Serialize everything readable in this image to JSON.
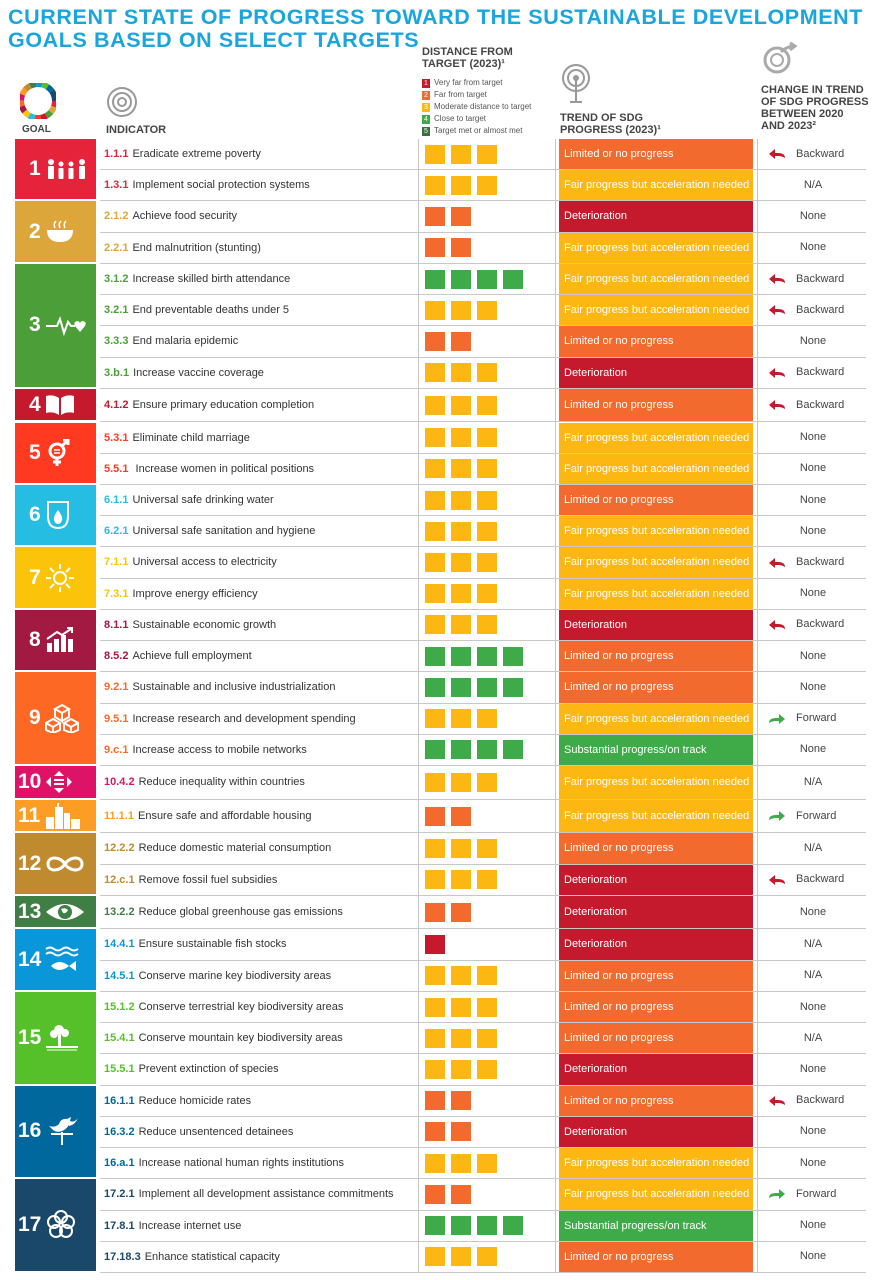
{
  "title": [
    "CURRENT STATE OF PROGRESS TOWARD THE SUSTAINABLE DEVELOPMENT",
    "GOALS BASED ON SELECT TARGETS"
  ],
  "headers": {
    "goal": "GOAL",
    "indicator": "INDICATOR",
    "distance": [
      "DISTANCE FROM",
      "TARGET (2023)¹"
    ],
    "trend": [
      "TREND OF SDG",
      "PROGRESS (2023)¹"
    ],
    "change": [
      "CHANGE IN TREND",
      "OF SDG PROGRESS",
      "BETWEEN 2020",
      "AND 2023²"
    ]
  },
  "colors": {
    "dist_1": "#c5192d",
    "dist_2": "#f26a2d",
    "dist_3": "#fdb713",
    "dist_4": "#3faa48",
    "dist_5": "#3d6f3e",
    "trend_deterioration": "#c5192d",
    "trend_limited": "#f26a2d",
    "trend_fair": "#fdb713",
    "trend_substantial": "#3faa48",
    "arrow_backward": "#c5192d",
    "arrow_forward": "#3faa48"
  },
  "legend": [
    {
      "n": "1",
      "label": "Very far from target",
      "color": "#c5192d"
    },
    {
      "n": "2",
      "label": "Far from target",
      "color": "#f26a2d"
    },
    {
      "n": "3",
      "label": "Moderate distance to target",
      "color": "#fdb713"
    },
    {
      "n": "4",
      "label": "Close to target",
      "color": "#3faa48"
    },
    {
      "n": "5",
      "label": "Target met or almost met",
      "color": "#3d6f3e"
    }
  ],
  "goals": [
    {
      "n": "1",
      "color": "#e5243b",
      "icon": "family-icon"
    },
    {
      "n": "2",
      "color": "#dda63a",
      "icon": "bowl-icon"
    },
    {
      "n": "3",
      "color": "#4c9f38",
      "icon": "heartbeat-icon"
    },
    {
      "n": "4",
      "color": "#c5192d",
      "icon": "book-icon"
    },
    {
      "n": "5",
      "color": "#ff3a21",
      "icon": "gender-icon"
    },
    {
      "n": "6",
      "color": "#26bde2",
      "icon": "water-drop-icon"
    },
    {
      "n": "7",
      "color": "#fcc30b",
      "icon": "sun-icon"
    },
    {
      "n": "8",
      "color": "#a21942",
      "icon": "growth-chart-icon"
    },
    {
      "n": "9",
      "color": "#fd6925",
      "icon": "cubes-icon"
    },
    {
      "n": "10",
      "color": "#dd1367",
      "icon": "equality-icon"
    },
    {
      "n": "11",
      "color": "#fd9d24",
      "icon": "city-icon"
    },
    {
      "n": "12",
      "color": "#bf8b2e",
      "icon": "infinity-icon"
    },
    {
      "n": "13",
      "color": "#3f7e44",
      "icon": "eye-globe-icon"
    },
    {
      "n": "14",
      "color": "#0a97d9",
      "icon": "fish-icon"
    },
    {
      "n": "15",
      "color": "#56c02b",
      "icon": "tree-icon"
    },
    {
      "n": "16",
      "color": "#00689d",
      "icon": "dove-icon"
    },
    {
      "n": "17",
      "color": "#19486a",
      "icon": "flower-icon"
    }
  ],
  "chart_data": {
    "type": "table",
    "columns": [
      "GOAL",
      "INDICATOR",
      "DISTANCE FROM TARGET (2023)¹",
      "TREND OF SDG PROGRESS (2023)¹",
      "CHANGE IN TREND OF SDG PROGRESS BETWEEN 2020 AND 2023²"
    ],
    "rows": [
      {
        "goal": "1",
        "code": "1.1.1",
        "text": "Eradicate extreme poverty",
        "distance": 3,
        "trend": "Limited or no progress",
        "change": "Backward"
      },
      {
        "goal": "1",
        "code": "1.3.1",
        "text": "Implement social protection systems",
        "distance": 3,
        "trend": "Fair progress but acceleration needed",
        "change": "N/A"
      },
      {
        "goal": "2",
        "code": "2.1.2",
        "text": "Achieve food security",
        "distance": 2,
        "trend": "Deterioration",
        "change": "None"
      },
      {
        "goal": "2",
        "code": "2.2.1",
        "text": "End malnutrition (stunting)",
        "distance": 2,
        "trend": "Fair progress but acceleration needed",
        "change": "None"
      },
      {
        "goal": "3",
        "code": "3.1.2",
        "text": "Increase skilled birth attendance",
        "distance": 4,
        "trend": "Fair progress but acceleration needed",
        "change": "Backward"
      },
      {
        "goal": "3",
        "code": "3.2.1",
        "text": "End preventable deaths under 5",
        "distance": 3,
        "trend": "Fair progress but acceleration needed",
        "change": "Backward"
      },
      {
        "goal": "3",
        "code": "3.3.3",
        "text": "End malaria epidemic",
        "distance": 2,
        "trend": "Limited or no progress",
        "change": "None"
      },
      {
        "goal": "3",
        "code": "3.b.1",
        "text": "Increase vaccine coverage",
        "distance": 3,
        "trend": "Deterioration",
        "change": "Backward"
      },
      {
        "goal": "4",
        "code": "4.1.2",
        "text": "Ensure primary education completion",
        "distance": 3,
        "trend": "Limited or no progress",
        "change": "Backward"
      },
      {
        "goal": "5",
        "code": "5.3.1",
        "text": "Eliminate child marriage",
        "distance": 3,
        "trend": "Fair progress but acceleration needed",
        "change": "None"
      },
      {
        "goal": "5",
        "code": "5.5.1",
        "text": " Increase women in political positions",
        "distance": 3,
        "trend": "Fair progress but acceleration needed",
        "change": "None"
      },
      {
        "goal": "6",
        "code": "6.1.1",
        "text": "Universal safe drinking water",
        "distance": 3,
        "trend": "Limited or no progress",
        "change": "None"
      },
      {
        "goal": "6",
        "code": "6.2.1",
        "text": "Universal safe sanitation and hygiene",
        "distance": 3,
        "trend": "Fair progress but acceleration needed",
        "change": "None"
      },
      {
        "goal": "7",
        "code": "7.1.1",
        "text": "Universal access to electricity",
        "distance": 3,
        "trend": "Fair progress but acceleration needed",
        "change": "Backward"
      },
      {
        "goal": "7",
        "code": "7.3.1",
        "text": "Improve energy efficiency",
        "distance": 3,
        "trend": "Fair progress but acceleration needed",
        "change": "None"
      },
      {
        "goal": "8",
        "code": "8.1.1",
        "text": "Sustainable economic growth",
        "distance": 3,
        "trend": "Deterioration",
        "change": "Backward"
      },
      {
        "goal": "8",
        "code": "8.5.2",
        "text": "Achieve full employment",
        "distance": 4,
        "trend": "Limited or no progress",
        "change": "None"
      },
      {
        "goal": "9",
        "code": "9.2.1",
        "text": "Sustainable and inclusive industrialization",
        "distance": 4,
        "trend": "Limited or no progress",
        "change": "None"
      },
      {
        "goal": "9",
        "code": "9.5.1",
        "text": "Increase research and development spending",
        "distance": 3,
        "trend": "Fair progress but acceleration needed",
        "change": "Forward"
      },
      {
        "goal": "9",
        "code": "9.c.1",
        "text": "Increase access to mobile networks",
        "distance": 4,
        "trend": "Substantial progress/on track",
        "change": "None"
      },
      {
        "goal": "10",
        "code": "10.4.2",
        "text": "Reduce inequality within countries",
        "distance": 3,
        "trend": "Fair progress but acceleration needed",
        "change": "N/A"
      },
      {
        "goal": "11",
        "code": "11.1.1",
        "text": "Ensure safe and affordable housing",
        "distance": 2,
        "trend": "Fair progress but acceleration needed",
        "change": "Forward"
      },
      {
        "goal": "12",
        "code": "12.2.2",
        "text": "Reduce domestic material consumption",
        "distance": 3,
        "trend": "Limited or no progress",
        "change": "N/A"
      },
      {
        "goal": "12",
        "code": "12.c.1",
        "text": "Remove fossil fuel subsidies",
        "distance": 3,
        "trend": "Deterioration",
        "change": "Backward"
      },
      {
        "goal": "13",
        "code": "13.2.2",
        "text": "Reduce global greenhouse gas emissions",
        "distance": 2,
        "trend": "Deterioration",
        "change": "None"
      },
      {
        "goal": "14",
        "code": "14.4.1",
        "text": "Ensure sustainable fish stocks",
        "distance": 1,
        "trend": "Deterioration",
        "change": "N/A"
      },
      {
        "goal": "14",
        "code": "14.5.1",
        "text": "Conserve marine key biodiversity areas",
        "distance": 3,
        "trend": "Limited or no progress",
        "change": "N/A"
      },
      {
        "goal": "15",
        "code": "15.1.2",
        "text": "Conserve terrestrial key biodiversity areas",
        "distance": 3,
        "trend": "Limited or no progress",
        "change": "None"
      },
      {
        "goal": "15",
        "code": "15.4.1",
        "text": "Conserve mountain key biodiversity areas",
        "distance": 3,
        "trend": "Limited or no progress",
        "change": "N/A"
      },
      {
        "goal": "15",
        "code": "15.5.1",
        "text": "Prevent extinction of species",
        "distance": 3,
        "trend": "Deterioration",
        "change": "None"
      },
      {
        "goal": "16",
        "code": "16.1.1",
        "text": "Reduce homicide rates",
        "distance": 2,
        "trend": "Limited or no progress",
        "change": "Backward"
      },
      {
        "goal": "16",
        "code": "16.3.2",
        "text": "Reduce unsentenced detainees",
        "distance": 2,
        "trend": "Deterioration",
        "change": "None"
      },
      {
        "goal": "16",
        "code": "16.a.1",
        "text": "Increase national human rights institutions",
        "distance": 3,
        "trend": "Fair progress but acceleration needed",
        "change": "None"
      },
      {
        "goal": "17",
        "code": "17.2.1",
        "text": "Implement all development assistance commitments",
        "distance": 2,
        "trend": "Fair progress but acceleration needed",
        "change": "Forward"
      },
      {
        "goal": "17",
        "code": "17.8.1",
        "text": "Increase internet use",
        "distance": 4,
        "trend": "Substantial progress/on track",
        "change": "None"
      },
      {
        "goal": "17",
        "code": "17.18.3",
        "text": "Enhance statistical capacity",
        "distance": 3,
        "trend": "Limited or no progress",
        "change": "None"
      }
    ]
  }
}
